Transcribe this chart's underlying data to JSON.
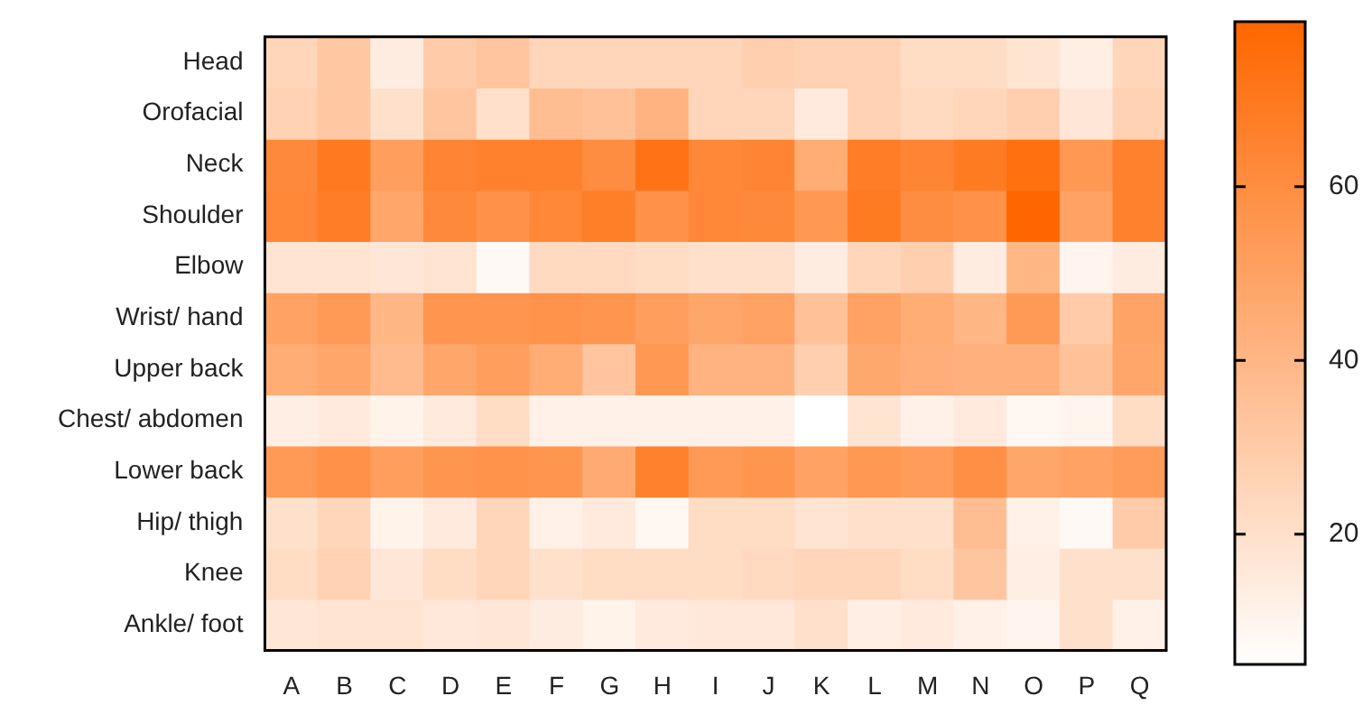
{
  "chart_data": {
    "type": "heatmap",
    "categories": [
      "A",
      "B",
      "C",
      "D",
      "E",
      "F",
      "G",
      "H",
      "I",
      "J",
      "K",
      "L",
      "M",
      "N",
      "O",
      "P",
      "Q"
    ],
    "y_categories": [
      "Head",
      "Orofacial",
      "Neck",
      "Shoulder",
      "Elbow",
      "Wrist/ hand",
      "Upper back",
      "Chest/ abdomen",
      "Lower back",
      "Hip/ thigh",
      "Knee",
      "Ankle/ foot"
    ],
    "cells": [
      [
        25,
        32,
        14,
        30,
        33,
        25,
        25,
        25,
        25,
        28,
        27,
        27,
        22,
        22,
        18,
        13,
        25
      ],
      [
        27,
        32,
        20,
        33,
        20,
        37,
        35,
        42,
        25,
        25,
        15,
        27,
        23,
        25,
        28,
        17,
        27
      ],
      [
        62,
        70,
        52,
        64,
        66,
        66,
        60,
        73,
        63,
        64,
        45,
        68,
        64,
        69,
        74,
        55,
        66
      ],
      [
        63,
        68,
        48,
        62,
        58,
        63,
        67,
        58,
        63,
        62,
        55,
        69,
        60,
        58,
        79,
        50,
        66
      ],
      [
        18,
        18,
        17,
        18,
        8,
        23,
        23,
        22,
        20,
        20,
        14,
        25,
        28,
        14,
        40,
        10,
        14
      ],
      [
        50,
        54,
        40,
        56,
        56,
        57,
        56,
        52,
        48,
        50,
        35,
        50,
        45,
        40,
        54,
        30,
        49
      ],
      [
        45,
        48,
        38,
        48,
        52,
        45,
        33,
        55,
        42,
        42,
        28,
        47,
        44,
        43,
        43,
        35,
        48
      ],
      [
        13,
        15,
        11,
        15,
        22,
        12,
        12,
        12,
        12,
        12,
        5,
        18,
        12,
        15,
        9,
        10,
        22
      ],
      [
        54,
        58,
        52,
        56,
        57,
        56,
        46,
        66,
        54,
        56,
        50,
        55,
        53,
        59,
        48,
        50,
        53
      ],
      [
        20,
        25,
        11,
        15,
        25,
        12,
        15,
        9,
        22,
        22,
        18,
        20,
        20,
        37,
        12,
        8,
        30
      ],
      [
        22,
        27,
        17,
        22,
        25,
        20,
        22,
        22,
        22,
        23,
        25,
        25,
        22,
        33,
        13,
        20,
        20
      ],
      [
        17,
        18,
        18,
        16,
        17,
        14,
        11,
        15,
        16,
        16,
        20,
        13,
        15,
        12,
        10,
        20,
        12
      ]
    ],
    "clim": [
      5,
      79
    ],
    "cticks": [
      20,
      40,
      60
    ]
  }
}
